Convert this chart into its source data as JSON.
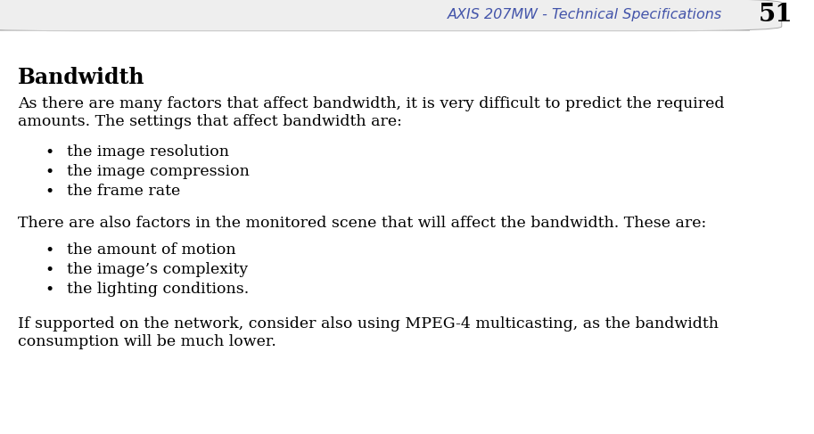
{
  "header_text": "AXIS 207MW - Technical Specifications",
  "page_number": "51",
  "header_color": "#4455aa",
  "header_bg": "#eeeeee",
  "title": "Bandwidth",
  "para1_line1": "As there are many factors that affect bandwidth, it is very difficult to predict the required",
  "para1_line2": "amounts. The settings that affect bandwidth are:",
  "bullets1": [
    "the image resolution",
    "the image compression",
    "the frame rate"
  ],
  "para2": "There are also factors in the monitored scene that will affect the bandwidth. These are:",
  "bullets2": [
    "the amount of motion",
    "the image’s complexity",
    "the lighting conditions."
  ],
  "para3_line1": "If supported on the network, consider also using MPEG-4 multicasting, as the bandwidth",
  "para3_line2": "consumption will be much lower.",
  "bg_color": "#ffffff",
  "text_color": "#000000",
  "body_font_size": 12.5,
  "title_font_size": 17,
  "header_font_size": 11.5,
  "page_num_font_size": 20
}
